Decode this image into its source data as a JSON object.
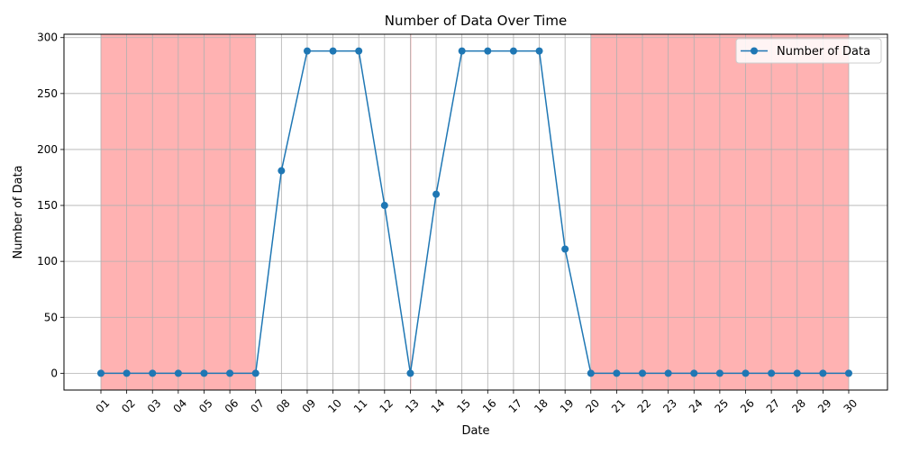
{
  "chart_data": {
    "type": "line",
    "title": "Number of Data Over Time",
    "xlabel": "Date",
    "ylabel": "Number of Data",
    "categories": [
      "01",
      "02",
      "03",
      "04",
      "05",
      "06",
      "07",
      "08",
      "09",
      "10",
      "11",
      "12",
      "13",
      "14",
      "15",
      "16",
      "17",
      "18",
      "19",
      "20",
      "21",
      "22",
      "23",
      "24",
      "25",
      "26",
      "27",
      "28",
      "29",
      "30"
    ],
    "series": [
      {
        "name": "Number of Data",
        "color": "#1f77b4",
        "values": [
          0,
          0,
          0,
          0,
          0,
          0,
          0,
          181,
          288,
          288,
          288,
          150,
          0,
          160,
          288,
          288,
          288,
          288,
          111,
          0,
          0,
          0,
          0,
          0,
          0,
          0,
          0,
          0,
          0,
          0
        ]
      }
    ],
    "ylim": [
      -15,
      303
    ],
    "yticks": [
      0,
      50,
      100,
      150,
      200,
      250,
      300
    ],
    "highlight_ranges": [
      {
        "from": "01",
        "to": "07",
        "color": "#ff7f7f"
      },
      {
        "from": "13",
        "to": "13",
        "color": "#ff7f7f"
      },
      {
        "from": "20",
        "to": "30",
        "color": "#ff7f7f"
      }
    ],
    "grid": true,
    "legend": "top-right"
  }
}
